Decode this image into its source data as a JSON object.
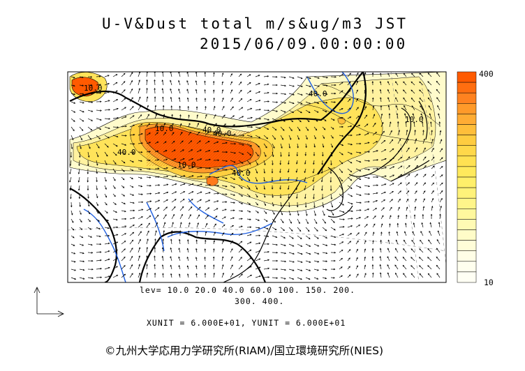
{
  "title": {
    "line1": "U-V&Dust total m/s&ug/m3 JST",
    "line2": "2015/06/09.00:00:00"
  },
  "levels_text": {
    "line1": "lev= 10.0 20.0 40.0 60.0 100. 150. 200.",
    "line2": "300. 400."
  },
  "units_text": "XUNIT = 6.000E+01, YUNIT = 6.000E+01",
  "credit": "©九州大学応用力学研究所(RIAM)/国立環境研究所(NIES)",
  "colorbar": {
    "top_label": "400",
    "bottom_label": "10",
    "colors": [
      "#ff5a00",
      "#ff6e10",
      "#ff8220",
      "#ff9a2a",
      "#ffac34",
      "#ffbe3a",
      "#ffcc40",
      "#ffd84a",
      "#ffe152",
      "#ffe95c",
      "#ffef6a",
      "#fff27a",
      "#fff58a",
      "#fff89e",
      "#fffab4",
      "#fffcc8",
      "#fffdd8",
      "#fffee6",
      "#ffffee",
      "#fffff4"
    ]
  },
  "contour_labels": [
    "40.0",
    "10.0",
    "40.0",
    "10.0",
    "40.0",
    "40.0",
    "10.0",
    "10.0",
    "40.0"
  ],
  "colors": {
    "coast": "#000000",
    "rivers": "#1f5fe0",
    "dust_high": "#ff5a00",
    "dust_low": "#fffbcc"
  }
}
